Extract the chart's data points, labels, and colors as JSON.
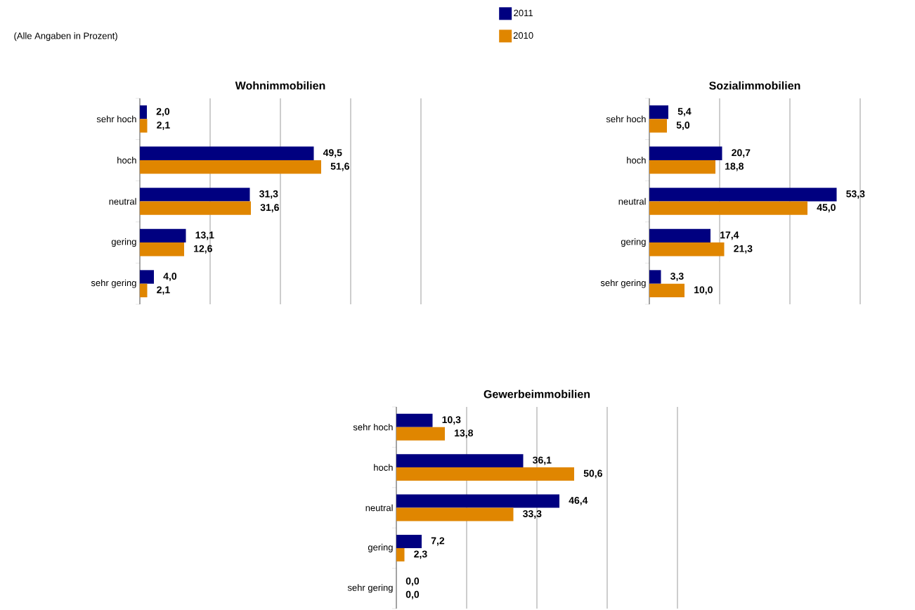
{
  "chart_data": [
    {
      "type": "bar",
      "orientation": "horizontal",
      "title": "Wohnimmobilien",
      "categories": [
        "sehr hoch",
        "hoch",
        "neutral",
        "gering",
        "sehr gering"
      ],
      "series": [
        {
          "name": "2011",
          "color": "#000080",
          "values": [
            2.0,
            49.5,
            31.3,
            13.1,
            4.0
          ],
          "value_labels": [
            "2,0",
            "49,5",
            "31,3",
            "13,1",
            "4,0"
          ]
        },
        {
          "name": "2010",
          "color": "#e08600",
          "values": [
            2.1,
            51.6,
            31.6,
            12.6,
            2.1
          ],
          "value_labels": [
            "2,1",
            "51,6",
            "31,6",
            "12,6",
            "2,1"
          ]
        }
      ],
      "xlim": [
        0,
        80
      ],
      "xticks": [
        0,
        20,
        40,
        60,
        80
      ],
      "grid": "x",
      "tick_labels": "y",
      "legend": "top right",
      "annotations": [
        "(Alle Angaben in Prozent)"
      ]
    },
    {
      "type": "bar",
      "orientation": "horizontal",
      "title": "Sozialimmobilien",
      "categories": [
        "sehr hoch",
        "hoch",
        "neutral",
        "gering",
        "sehr gering"
      ],
      "series": [
        {
          "color": "#000080",
          "values": [
            5.4,
            20.7,
            53.3,
            17.4,
            3.3
          ],
          "value_labels": [
            "5,4",
            "20,7",
            "53,3",
            "17,4",
            "3,3"
          ]
        },
        {
          "color": "#e08600",
          "values": [
            5.0,
            18.8,
            45.0,
            21.3,
            10.0
          ],
          "value_labels": [
            "5,0",
            "18,8",
            "45,0",
            "21,3",
            "10,0"
          ]
        }
      ],
      "xlim": [
        0,
        60
      ],
      "xticks": [
        0,
        20,
        40,
        60
      ],
      "grid": "x",
      "tick_labels": "y"
    },
    {
      "type": "bar",
      "orientation": "horizontal",
      "title": "Gewerbeimmobilien",
      "categories": [
        "sehr hoch",
        "hoch",
        "neutral",
        "gering",
        "sehr gering"
      ],
      "series": [
        {
          "color": "#000080",
          "values": [
            10.3,
            36.1,
            46.4,
            7.2,
            0.0
          ],
          "value_labels": [
            "10,3",
            "36,1",
            "46,4",
            "7,2",
            "0,0"
          ]
        },
        {
          "color": "#e08600",
          "values": [
            13.8,
            50.6,
            33.3,
            2.3,
            0.0
          ],
          "value_labels": [
            "13,8",
            "50,6",
            "33,3",
            "2,3",
            "0,0"
          ]
        }
      ],
      "xlim": [
        0,
        80
      ],
      "xticks": [
        0,
        20,
        40,
        60,
        80
      ],
      "grid": "x",
      "tick_labels": "y"
    }
  ]
}
